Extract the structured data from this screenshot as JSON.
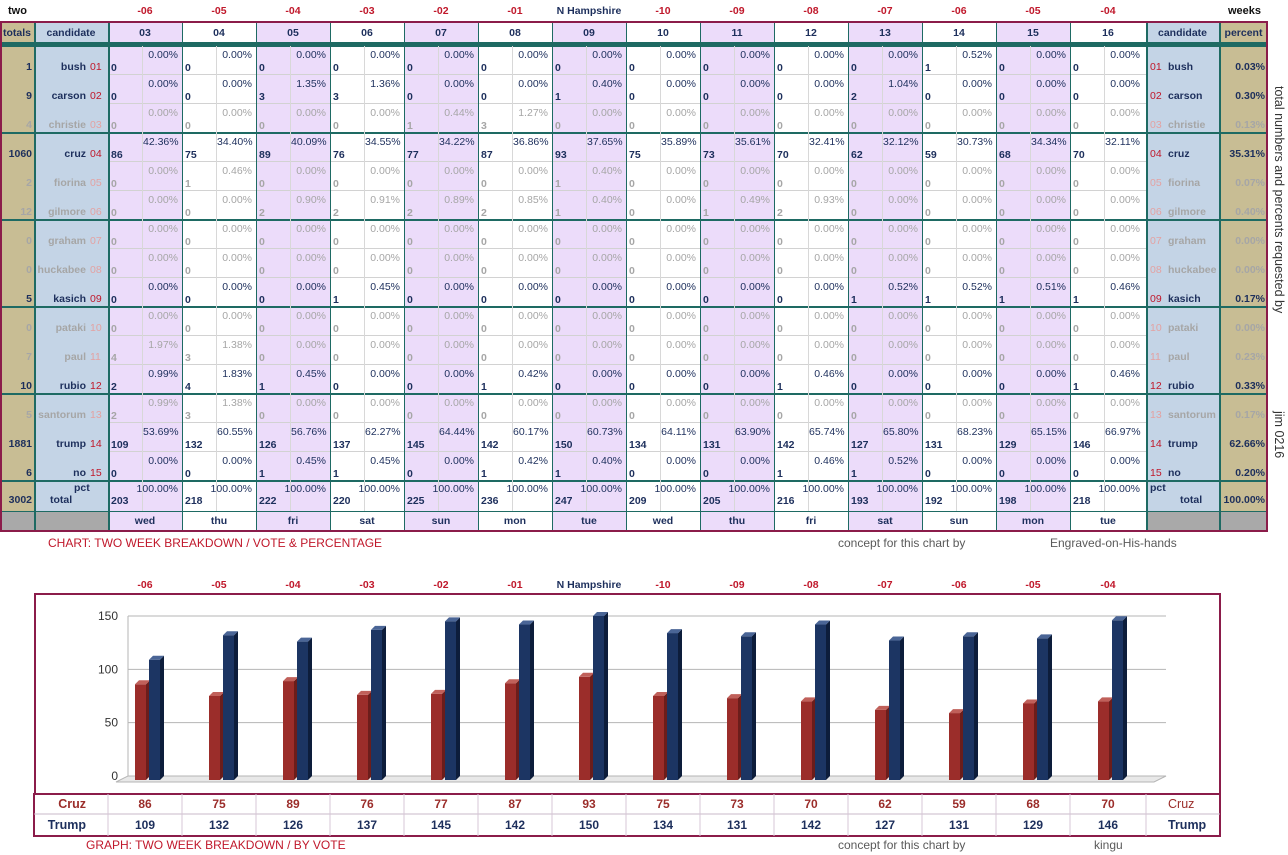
{
  "header": {
    "left": "two",
    "right": "weeks",
    "center": "N Hampshire",
    "day_offsets": [
      "-06",
      "-05",
      "-04",
      "-03",
      "-02",
      "-01",
      "N Hampshire",
      "-10",
      "-09",
      "-08",
      "-07",
      "-06",
      "-05",
      "-04"
    ],
    "col_totals": "totals",
    "col_candidate": "candidate",
    "col_percent": "percent",
    "dates": [
      "03",
      "04",
      "05",
      "06",
      "07",
      "08",
      "09",
      "10",
      "11",
      "12",
      "13",
      "14",
      "15",
      "16"
    ],
    "weekdays": [
      "wed",
      "thu",
      "fri",
      "sat",
      "sun",
      "mon",
      "tue",
      "wed",
      "thu",
      "fri",
      "sat",
      "sun",
      "mon",
      "tue"
    ]
  },
  "candidates": [
    {
      "name": "bush",
      "num": "01",
      "total": "1",
      "percent": "0.03%",
      "active": true,
      "votes": [
        "0",
        "0",
        "0",
        "0",
        "0",
        "0",
        "0",
        "0",
        "0",
        "0",
        "0",
        "1",
        "0",
        "0"
      ],
      "pcts": [
        "0.00%",
        "0.00%",
        "0.00%",
        "0.00%",
        "0.00%",
        "0.00%",
        "0.00%",
        "0.00%",
        "0.00%",
        "0.00%",
        "0.00%",
        "0.52%",
        "0.00%",
        "0.00%"
      ]
    },
    {
      "name": "carson",
      "num": "02",
      "total": "9",
      "percent": "0.30%",
      "active": true,
      "votes": [
        "0",
        "0",
        "3",
        "3",
        "0",
        "0",
        "1",
        "0",
        "0",
        "0",
        "2",
        "0",
        "0",
        "0"
      ],
      "pcts": [
        "0.00%",
        "0.00%",
        "1.35%",
        "1.36%",
        "0.00%",
        "0.00%",
        "0.40%",
        "0.00%",
        "0.00%",
        "0.00%",
        "1.04%",
        "0.00%",
        "0.00%",
        "0.00%"
      ]
    },
    {
      "name": "christie",
      "num": "03",
      "total": "4",
      "percent": "0.13%",
      "active": false,
      "votes": [
        "0",
        "0",
        "0",
        "0",
        "1",
        "3",
        "0",
        "0",
        "0",
        "0",
        "0",
        "0",
        "0",
        "0"
      ],
      "pcts": [
        "0.00%",
        "0.00%",
        "0.00%",
        "0.00%",
        "0.44%",
        "1.27%",
        "0.00%",
        "0.00%",
        "0.00%",
        "0.00%",
        "0.00%",
        "0.00%",
        "0.00%",
        "0.00%"
      ]
    },
    {
      "name": "cruz",
      "num": "04",
      "total": "1060",
      "percent": "35.31%",
      "active": true,
      "votes": [
        "86",
        "75",
        "89",
        "76",
        "77",
        "87",
        "93",
        "75",
        "73",
        "70",
        "62",
        "59",
        "68",
        "70"
      ],
      "pcts": [
        "42.36%",
        "34.40%",
        "40.09%",
        "34.55%",
        "34.22%",
        "36.86%",
        "37.65%",
        "35.89%",
        "35.61%",
        "32.41%",
        "32.12%",
        "30.73%",
        "34.34%",
        "32.11%"
      ]
    },
    {
      "name": "fiorina",
      "num": "05",
      "total": "2",
      "percent": "0.07%",
      "active": false,
      "votes": [
        "0",
        "1",
        "0",
        "0",
        "0",
        "0",
        "1",
        "0",
        "0",
        "0",
        "0",
        "0",
        "0",
        "0"
      ],
      "pcts": [
        "0.00%",
        "0.46%",
        "0.00%",
        "0.00%",
        "0.00%",
        "0.00%",
        "0.40%",
        "0.00%",
        "0.00%",
        "0.00%",
        "0.00%",
        "0.00%",
        "0.00%",
        "0.00%"
      ]
    },
    {
      "name": "gilmore",
      "num": "06",
      "total": "12",
      "percent": "0.40%",
      "active": false,
      "votes": [
        "0",
        "0",
        "2",
        "2",
        "2",
        "2",
        "1",
        "0",
        "1",
        "2",
        "0",
        "0",
        "0",
        "0"
      ],
      "pcts": [
        "0.00%",
        "0.00%",
        "0.90%",
        "0.91%",
        "0.89%",
        "0.85%",
        "0.40%",
        "0.00%",
        "0.49%",
        "0.93%",
        "0.00%",
        "0.00%",
        "0.00%",
        "0.00%"
      ]
    },
    {
      "name": "graham",
      "num": "07",
      "total": "0",
      "percent": "0.00%",
      "active": false,
      "votes": [
        "0",
        "0",
        "0",
        "0",
        "0",
        "0",
        "0",
        "0",
        "0",
        "0",
        "0",
        "0",
        "0",
        "0"
      ],
      "pcts": [
        "0.00%",
        "0.00%",
        "0.00%",
        "0.00%",
        "0.00%",
        "0.00%",
        "0.00%",
        "0.00%",
        "0.00%",
        "0.00%",
        "0.00%",
        "0.00%",
        "0.00%",
        "0.00%"
      ]
    },
    {
      "name": "huckabee",
      "num": "08",
      "total": "0",
      "percent": "0.00%",
      "active": false,
      "votes": [
        "0",
        "0",
        "0",
        "0",
        "0",
        "0",
        "0",
        "0",
        "0",
        "0",
        "0",
        "0",
        "0",
        "0"
      ],
      "pcts": [
        "0.00%",
        "0.00%",
        "0.00%",
        "0.00%",
        "0.00%",
        "0.00%",
        "0.00%",
        "0.00%",
        "0.00%",
        "0.00%",
        "0.00%",
        "0.00%",
        "0.00%",
        "0.00%"
      ]
    },
    {
      "name": "kasich",
      "num": "09",
      "total": "5",
      "percent": "0.17%",
      "active": true,
      "votes": [
        "0",
        "0",
        "0",
        "1",
        "0",
        "0",
        "0",
        "0",
        "0",
        "0",
        "1",
        "1",
        "1",
        "1"
      ],
      "pcts": [
        "0.00%",
        "0.00%",
        "0.00%",
        "0.45%",
        "0.00%",
        "0.00%",
        "0.00%",
        "0.00%",
        "0.00%",
        "0.00%",
        "0.52%",
        "0.52%",
        "0.51%",
        "0.46%"
      ]
    },
    {
      "name": "pataki",
      "num": "10",
      "total": "0",
      "percent": "0.00%",
      "active": false,
      "votes": [
        "0",
        "0",
        "0",
        "0",
        "0",
        "0",
        "0",
        "0",
        "0",
        "0",
        "0",
        "0",
        "0",
        "0"
      ],
      "pcts": [
        "0.00%",
        "0.00%",
        "0.00%",
        "0.00%",
        "0.00%",
        "0.00%",
        "0.00%",
        "0.00%",
        "0.00%",
        "0.00%",
        "0.00%",
        "0.00%",
        "0.00%",
        "0.00%"
      ]
    },
    {
      "name": "paul",
      "num": "11",
      "total": "7",
      "percent": "0.23%",
      "active": false,
      "votes": [
        "4",
        "3",
        "0",
        "0",
        "0",
        "0",
        "0",
        "0",
        "0",
        "0",
        "0",
        "0",
        "0",
        "0"
      ],
      "pcts": [
        "1.97%",
        "1.38%",
        "0.00%",
        "0.00%",
        "0.00%",
        "0.00%",
        "0.00%",
        "0.00%",
        "0.00%",
        "0.00%",
        "0.00%",
        "0.00%",
        "0.00%",
        "0.00%"
      ]
    },
    {
      "name": "rubio",
      "num": "12",
      "total": "10",
      "percent": "0.33%",
      "active": true,
      "votes": [
        "2",
        "4",
        "1",
        "0",
        "0",
        "1",
        "0",
        "0",
        "0",
        "1",
        "0",
        "0",
        "0",
        "1"
      ],
      "pcts": [
        "0.99%",
        "1.83%",
        "0.45%",
        "0.00%",
        "0.00%",
        "0.42%",
        "0.00%",
        "0.00%",
        "0.00%",
        "0.46%",
        "0.00%",
        "0.00%",
        "0.00%",
        "0.46%"
      ]
    },
    {
      "name": "santorum",
      "num": "13",
      "total": "5",
      "percent": "0.17%",
      "active": false,
      "votes": [
        "2",
        "3",
        "0",
        "0",
        "0",
        "0",
        "0",
        "0",
        "0",
        "0",
        "0",
        "0",
        "0",
        "0"
      ],
      "pcts": [
        "0.99%",
        "1.38%",
        "0.00%",
        "0.00%",
        "0.00%",
        "0.00%",
        "0.00%",
        "0.00%",
        "0.00%",
        "0.00%",
        "0.00%",
        "0.00%",
        "0.00%",
        "0.00%"
      ]
    },
    {
      "name": "trump",
      "num": "14",
      "total": "1881",
      "percent": "62.66%",
      "active": true,
      "votes": [
        "109",
        "132",
        "126",
        "137",
        "145",
        "142",
        "150",
        "134",
        "131",
        "142",
        "127",
        "131",
        "129",
        "146"
      ],
      "pcts": [
        "53.69%",
        "60.55%",
        "56.76%",
        "62.27%",
        "64.44%",
        "60.17%",
        "60.73%",
        "64.11%",
        "63.90%",
        "65.74%",
        "65.80%",
        "68.23%",
        "65.15%",
        "66.97%"
      ]
    },
    {
      "name": "no",
      "num": "15",
      "total": "6",
      "percent": "0.20%",
      "active": true,
      "votes": [
        "0",
        "0",
        "1",
        "1",
        "0",
        "1",
        "1",
        "0",
        "0",
        "1",
        "1",
        "0",
        "0",
        "0"
      ],
      "pcts": [
        "0.00%",
        "0.00%",
        "0.45%",
        "0.45%",
        "0.00%",
        "0.42%",
        "0.40%",
        "0.00%",
        "0.00%",
        "0.46%",
        "0.52%",
        "0.00%",
        "0.00%",
        "0.00%"
      ]
    }
  ],
  "totals_row": {
    "grand_total": "3002",
    "label": "total",
    "pct_label": "pct",
    "percent": "100.00%",
    "votes": [
      "203",
      "218",
      "222",
      "220",
      "225",
      "236",
      "247",
      "209",
      "205",
      "216",
      "193",
      "192",
      "198",
      "218"
    ],
    "pcts": [
      "100.00%",
      "100.00%",
      "100.00%",
      "100.00%",
      "100.00%",
      "100.00%",
      "100.00%",
      "100.00%",
      "100.00%",
      "100.00%",
      "100.00%",
      "100.00%",
      "100.00%",
      "100.00%"
    ]
  },
  "side_note": "total numbers and percents requested by",
  "side_author": "jim 0216",
  "table_caption": "CHART: TWO WEEK BREAKDOWN / VOTE & PERCENTAGE",
  "table_credit_label": "concept for this chart by",
  "table_credit_name": "Engraved-on-His-hands",
  "graph_caption": "GRAPH: TWO WEEK BREAKDOWN / BY VOTE",
  "graph_credit_label": "concept for this chart by",
  "graph_credit_name": "kingu",
  "colors": {
    "cruz": "#9b2d2a",
    "trump": "#1c3563",
    "frame": "#8b1c4a",
    "header_teal": "#1e6a63"
  },
  "chart_data": {
    "type": "bar",
    "categories": [
      "-06",
      "-05",
      "-04",
      "-03",
      "-02",
      "-01",
      "N Hampshire",
      "-10",
      "-09",
      "-08",
      "-07",
      "-06",
      "-05",
      "-04"
    ],
    "series": [
      {
        "name": "Cruz",
        "values": [
          86,
          75,
          89,
          76,
          77,
          87,
          93,
          75,
          73,
          70,
          62,
          59,
          68,
          70
        ]
      },
      {
        "name": "Trump",
        "values": [
          109,
          132,
          126,
          137,
          145,
          142,
          150,
          134,
          131,
          142,
          127,
          131,
          129,
          146
        ]
      }
    ],
    "y_ticks": [
      "0",
      "50",
      "100",
      "150"
    ],
    "ylim": [
      0,
      160
    ],
    "grid": true,
    "legend": "data table below chart"
  }
}
